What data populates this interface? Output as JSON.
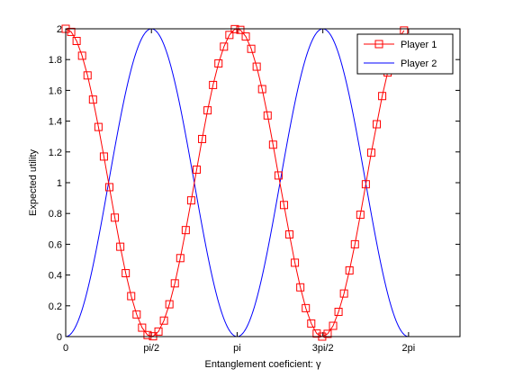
{
  "chart_data": {
    "type": "line",
    "title": "",
    "xlabel": "Entanglement coeficient: γ",
    "ylabel": "Expected utility",
    "xlim": [
      0,
      7.2257
    ],
    "ylim": [
      0,
      2
    ],
    "x_ticks": [
      {
        "value": 0,
        "label": "0"
      },
      {
        "value": 1.5708,
        "label": "pi/2"
      },
      {
        "value": 3.1416,
        "label": "pi"
      },
      {
        "value": 4.7124,
        "label": "3pi/2"
      },
      {
        "value": 6.2832,
        "label": "2pi"
      }
    ],
    "y_ticks": [
      0,
      0.2,
      0.4,
      0.6,
      0.8,
      1,
      1.2,
      1.4,
      1.6,
      1.8,
      2
    ],
    "y_tick_labels": [
      "0",
      "0.2",
      "0.4",
      "0.6",
      "0.8",
      "1",
      "1.2",
      "1.4",
      "1.6",
      "1.8",
      "2"
    ],
    "legend_position": "top-right",
    "series": [
      {
        "name": "Player 1",
        "color": "#ff0000",
        "marker": "square",
        "function": "1 + cos(2*gamma)",
        "x": [
          0,
          0.1,
          0.2,
          0.3,
          0.4,
          0.5,
          0.6,
          0.7,
          0.8,
          0.9,
          1.0,
          1.1,
          1.2,
          1.3,
          1.4,
          1.5,
          1.6,
          1.7,
          1.8,
          1.9,
          2.0,
          2.1,
          2.2,
          2.3,
          2.4,
          2.5,
          2.6,
          2.7,
          2.8,
          2.9,
          3.0,
          3.1,
          3.2,
          3.3,
          3.4,
          3.5,
          3.6,
          3.7,
          3.8,
          3.9,
          4.0,
          4.1,
          4.2,
          4.3,
          4.4,
          4.5,
          4.6,
          4.7,
          4.8,
          4.9,
          5.0,
          5.1,
          5.2,
          5.3,
          5.4,
          5.5,
          5.6,
          5.7,
          5.8,
          5.9,
          6.0,
          6.1,
          6.2
        ],
        "y": [
          2.0,
          1.98,
          1.921,
          1.825,
          1.697,
          1.54,
          1.362,
          1.17,
          0.971,
          0.773,
          0.584,
          0.412,
          0.263,
          0.144,
          0.058,
          0.01,
          0.002,
          0.033,
          0.104,
          0.21,
          0.346,
          0.51,
          0.692,
          0.885,
          1.085,
          1.284,
          1.47,
          1.635,
          1.775,
          1.884,
          1.96,
          1.998,
          1.993,
          1.95,
          1.87,
          1.754,
          1.608,
          1.437,
          1.247,
          1.047,
          0.855,
          0.664,
          0.48,
          0.32,
          0.185,
          0.085,
          0.02,
          0.0,
          0.018,
          0.07,
          0.161,
          0.28,
          0.43,
          0.6,
          0.792,
          0.99,
          1.195,
          1.38,
          1.563,
          1.716,
          1.844,
          1.935,
          1.989
        ]
      },
      {
        "name": "Player 2",
        "color": "#0000ff",
        "marker": "none",
        "function": "1 - cos(2*gamma)",
        "x_range": [
          0,
          6.2832
        ],
        "samples": 300
      }
    ]
  },
  "legend": {
    "entries": [
      "Player 1",
      "Player 2"
    ]
  }
}
